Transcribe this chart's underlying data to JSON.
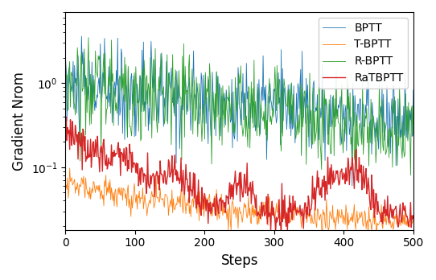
{
  "steps_n": 500,
  "bptt_color": "#1f77b4",
  "tbptt_color": "#ff7f0e",
  "rbptt_color": "#2ca02c",
  "ratbptt_color": "#d62728",
  "xlabel": "Steps",
  "ylabel": "Gradient Nrom",
  "ylim_low": 0.018,
  "ylim_high": 7.0,
  "xticks": [
    0,
    100,
    200,
    300,
    400,
    500
  ],
  "legend_labels": [
    "BPTT",
    "T-BPTT",
    "R-BPTT",
    "RaTBPTT"
  ],
  "linewidth_thin": 0.6,
  "linewidth_thick": 1.0
}
